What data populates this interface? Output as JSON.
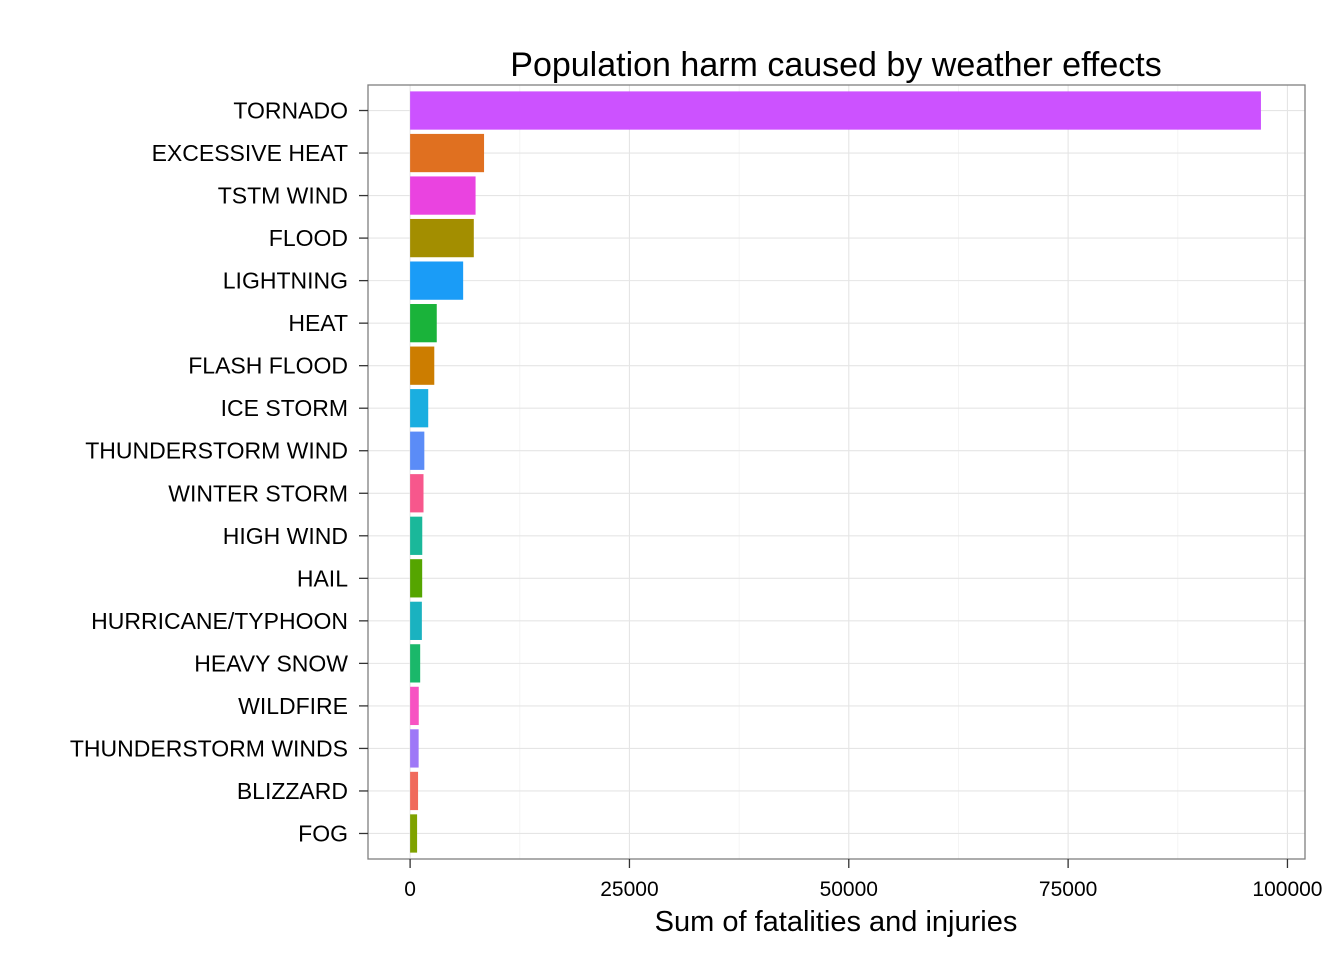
{
  "chart_data": {
    "type": "bar",
    "orientation": "horizontal",
    "title": "Population harm caused by weather effects",
    "xlabel": "Sum of fatalities and injuries",
    "ylabel": "",
    "xlim": [
      -4800,
      102000
    ],
    "xticks": [
      0,
      25000,
      50000,
      75000,
      100000
    ],
    "grid": true,
    "legend": "none",
    "categories": [
      "TORNADO",
      "EXCESSIVE HEAT",
      "TSTM WIND",
      "FLOOD",
      "LIGHTNING",
      "HEAT",
      "FLASH FLOOD",
      "ICE STORM",
      "THUNDERSTORM WIND",
      "WINTER STORM",
      "HIGH WIND",
      "HAIL",
      "HURRICANE/TYPHOON",
      "HEAVY SNOW",
      "WILDFIRE",
      "THUNDERSTORM WINDS",
      "BLIZZARD",
      "FOG"
    ],
    "values": [
      96979,
      8428,
      7461,
      7259,
      6046,
      3037,
      2755,
      2064,
      1621,
      1527,
      1385,
      1376,
      1339,
      1148,
      986,
      972,
      906,
      796
    ],
    "colors": [
      "#CC52FF",
      "#E07020",
      "#EA43E0",
      "#A38E00",
      "#1A9CF7",
      "#1AB33A",
      "#CC7D00",
      "#1AAEE0",
      "#5B8CF7",
      "#F7578C",
      "#1AB89A",
      "#55A500",
      "#1AB2C0",
      "#1AB86A",
      "#F753C2",
      "#9E78F7",
      "#F06A5C",
      "#7FA200"
    ]
  }
}
